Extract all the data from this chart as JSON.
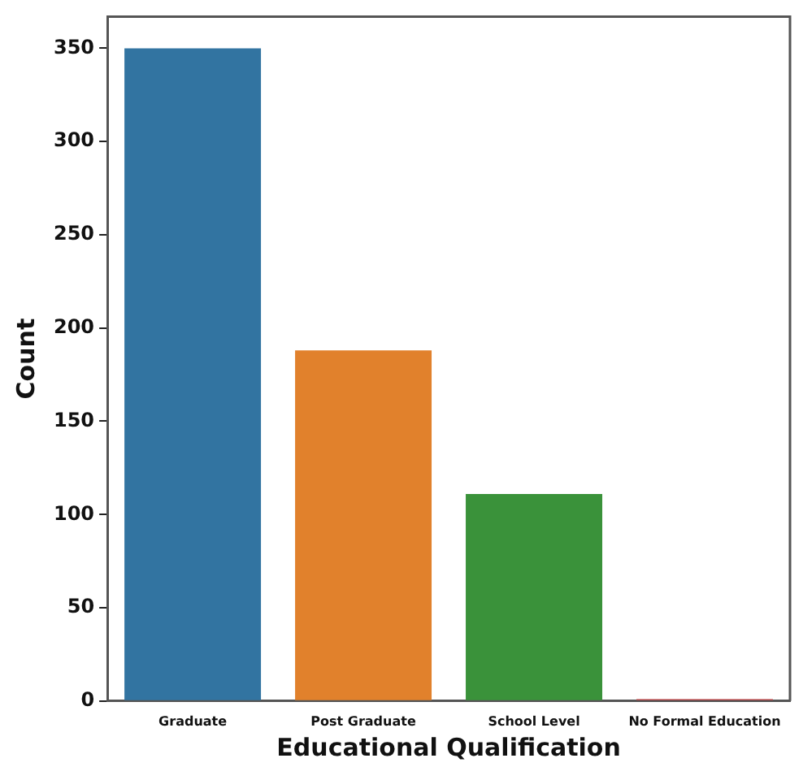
{
  "chart_data": {
    "type": "bar",
    "xlabel": "Educational Qualification",
    "ylabel": "Count",
    "categories": [
      "Graduate",
      "Post Graduate",
      "School Level",
      "No Formal Education"
    ],
    "values": [
      350,
      188,
      111,
      1
    ],
    "colors": [
      "#3274a1",
      "#e1812c",
      "#3a923a",
      "#c03d3e"
    ],
    "ylim": [
      0,
      367
    ],
    "yticks": [
      0,
      50,
      100,
      150,
      200,
      250,
      300,
      350
    ],
    "grid": false,
    "legend": false
  }
}
